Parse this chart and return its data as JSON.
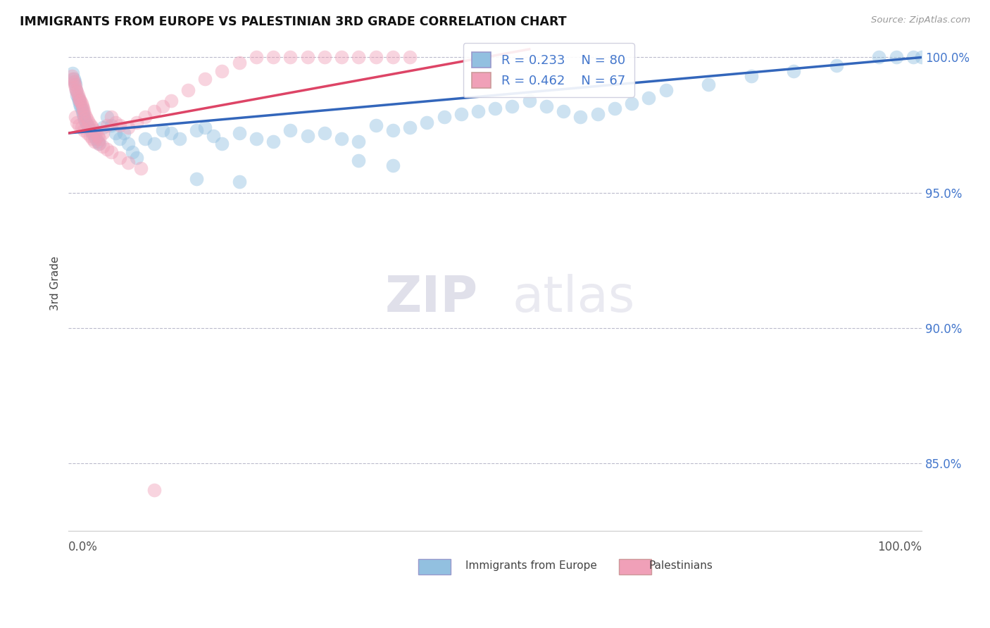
{
  "title": "IMMIGRANTS FROM EUROPE VS PALESTINIAN 3RD GRADE CORRELATION CHART",
  "source": "Source: ZipAtlas.com",
  "ylabel": "3rd Grade",
  "xlim": [
    0.0,
    1.0
  ],
  "ylim": [
    0.825,
    1.008
  ],
  "yticks": [
    0.85,
    0.9,
    0.95,
    1.0
  ],
  "ytick_labels": [
    "85.0%",
    "90.0%",
    "95.0%",
    "100.0%"
  ],
  "blue_R": 0.233,
  "blue_N": 80,
  "pink_R": 0.462,
  "pink_N": 67,
  "blue_color": "#92C0E0",
  "pink_color": "#F0A0B8",
  "blue_line_color": "#3366BB",
  "pink_line_color": "#DD4466",
  "tick_color": "#4477CC",
  "background_color": "#FFFFFF",
  "grid_color": "#BBBBCC",
  "watermark_zip": "ZIP",
  "watermark_atlas": "atlas",
  "blue_x": [
    0.005,
    0.006,
    0.007,
    0.008,
    0.009,
    0.01,
    0.011,
    0.012,
    0.013,
    0.014,
    0.015,
    0.016,
    0.017,
    0.018,
    0.019,
    0.02,
    0.022,
    0.024,
    0.026,
    0.028,
    0.03,
    0.032,
    0.034,
    0.036,
    0.04,
    0.045,
    0.05,
    0.055,
    0.06,
    0.065,
    0.07,
    0.075,
    0.08,
    0.09,
    0.1,
    0.11,
    0.12,
    0.13,
    0.15,
    0.16,
    0.17,
    0.18,
    0.2,
    0.22,
    0.24,
    0.26,
    0.28,
    0.3,
    0.32,
    0.34,
    0.36,
    0.38,
    0.4,
    0.42,
    0.44,
    0.46,
    0.48,
    0.5,
    0.52,
    0.54,
    0.56,
    0.58,
    0.6,
    0.62,
    0.64,
    0.66,
    0.68,
    0.7,
    0.75,
    0.8,
    0.85,
    0.9,
    0.95,
    0.97,
    0.99,
    1.0,
    0.34,
    0.38,
    0.15,
    0.2
  ],
  "blue_y": [
    0.994,
    0.992,
    0.991,
    0.99,
    0.988,
    0.986,
    0.985,
    0.984,
    0.983,
    0.982,
    0.981,
    0.98,
    0.979,
    0.978,
    0.977,
    0.976,
    0.975,
    0.974,
    0.973,
    0.972,
    0.971,
    0.97,
    0.969,
    0.968,
    0.974,
    0.978,
    0.975,
    0.972,
    0.97,
    0.972,
    0.968,
    0.965,
    0.963,
    0.97,
    0.968,
    0.973,
    0.972,
    0.97,
    0.973,
    0.974,
    0.971,
    0.968,
    0.972,
    0.97,
    0.969,
    0.973,
    0.971,
    0.972,
    0.97,
    0.969,
    0.975,
    0.973,
    0.974,
    0.976,
    0.978,
    0.979,
    0.98,
    0.981,
    0.982,
    0.984,
    0.982,
    0.98,
    0.978,
    0.979,
    0.981,
    0.983,
    0.985,
    0.988,
    0.99,
    0.993,
    0.995,
    0.997,
    1.0,
    1.0,
    1.0,
    1.0,
    0.962,
    0.96,
    0.955,
    0.954
  ],
  "pink_x": [
    0.004,
    0.005,
    0.006,
    0.007,
    0.008,
    0.009,
    0.01,
    0.011,
    0.012,
    0.013,
    0.014,
    0.015,
    0.016,
    0.017,
    0.018,
    0.019,
    0.02,
    0.022,
    0.024,
    0.026,
    0.028,
    0.03,
    0.032,
    0.034,
    0.036,
    0.04,
    0.045,
    0.05,
    0.055,
    0.06,
    0.07,
    0.08,
    0.09,
    0.1,
    0.11,
    0.12,
    0.14,
    0.16,
    0.18,
    0.2,
    0.22,
    0.24,
    0.26,
    0.28,
    0.3,
    0.32,
    0.34,
    0.36,
    0.38,
    0.4,
    0.008,
    0.01,
    0.012,
    0.015,
    0.018,
    0.022,
    0.025,
    0.028,
    0.03,
    0.035,
    0.04,
    0.045,
    0.05,
    0.06,
    0.07,
    0.085,
    0.1
  ],
  "pink_y": [
    0.993,
    0.992,
    0.991,
    0.99,
    0.989,
    0.988,
    0.987,
    0.986,
    0.985,
    0.984,
    0.984,
    0.983,
    0.982,
    0.981,
    0.98,
    0.979,
    0.978,
    0.977,
    0.976,
    0.975,
    0.974,
    0.973,
    0.972,
    0.971,
    0.97,
    0.972,
    0.975,
    0.978,
    0.976,
    0.975,
    0.974,
    0.976,
    0.978,
    0.98,
    0.982,
    0.984,
    0.988,
    0.992,
    0.995,
    0.998,
    1.0,
    1.0,
    1.0,
    1.0,
    1.0,
    1.0,
    1.0,
    1.0,
    1.0,
    1.0,
    0.978,
    0.976,
    0.975,
    0.974,
    0.973,
    0.972,
    0.971,
    0.97,
    0.969,
    0.968,
    0.967,
    0.966,
    0.965,
    0.963,
    0.961,
    0.959,
    0.84
  ],
  "blue_line_x0": 0.0,
  "blue_line_y0": 0.972,
  "blue_line_x1": 1.0,
  "blue_line_y1": 1.0,
  "pink_line_x0": 0.0,
  "pink_line_y0": 0.972,
  "pink_line_x1": 0.54,
  "pink_line_y1": 1.003
}
